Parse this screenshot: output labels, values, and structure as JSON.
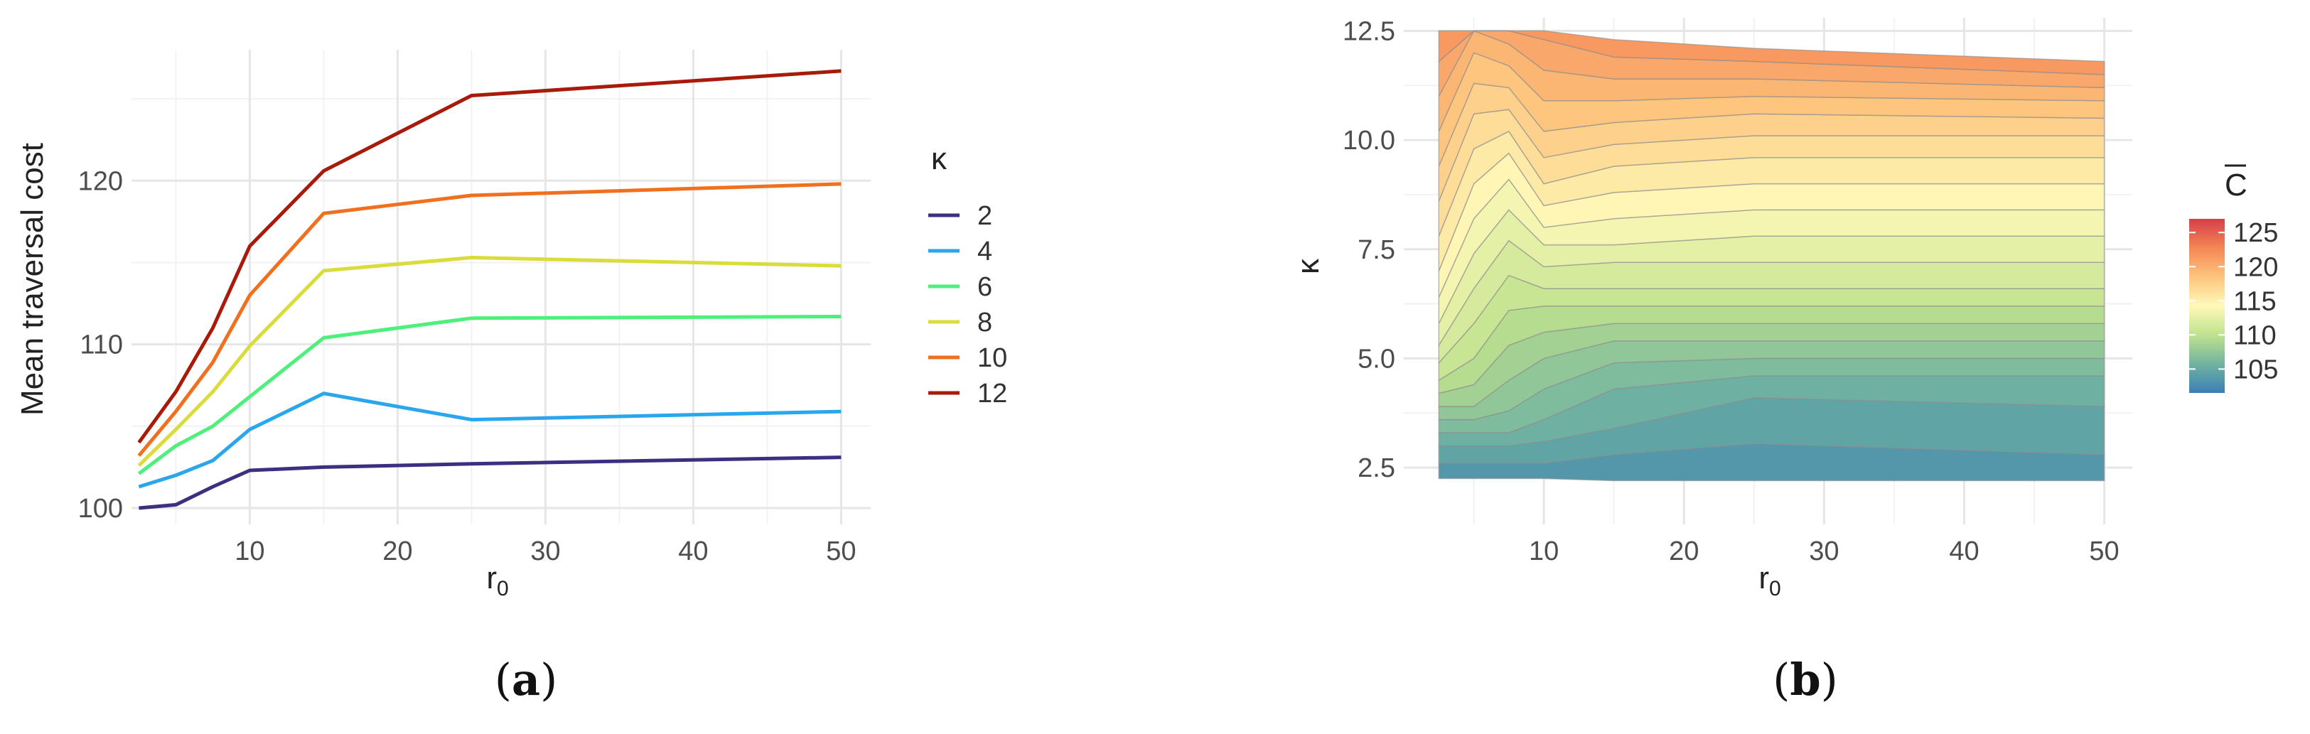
{
  "chart_data": [
    {
      "type": "line",
      "panel_label": {
        "open": "(",
        "letter": "a",
        "close": ")"
      },
      "xlabel": "r",
      "xlabel_subscript": "0",
      "ylabel": "Mean traversal cost",
      "xlim": [
        2,
        52
      ],
      "ylim": [
        99,
        128
      ],
      "x_ticks": [
        10,
        20,
        30,
        40,
        50
      ],
      "y_ticks": [
        100,
        110,
        120
      ],
      "grid": true,
      "legend_title": "κ",
      "legend_position": "right",
      "x": [
        2.5,
        5,
        7.5,
        10,
        15,
        25,
        50
      ],
      "series": [
        {
          "name": "2",
          "color": "#3b2f80",
          "values": [
            100.0,
            100.2,
            101.3,
            102.3,
            102.5,
            102.7,
            103.1
          ]
        },
        {
          "name": "4",
          "color": "#2aa7ec",
          "values": [
            101.3,
            102.0,
            102.9,
            104.8,
            107.0,
            105.4,
            105.9
          ]
        },
        {
          "name": "6",
          "color": "#4df07a",
          "values": [
            102.1,
            103.8,
            105.0,
            106.8,
            110.4,
            111.6,
            111.7
          ]
        },
        {
          "name": "8",
          "color": "#d9dc3b",
          "values": [
            102.6,
            104.8,
            107.1,
            109.9,
            114.5,
            115.3,
            114.8
          ]
        },
        {
          "name": "10",
          "color": "#f07020",
          "values": [
            103.2,
            105.9,
            108.9,
            113.0,
            118.0,
            119.1,
            119.8
          ]
        },
        {
          "name": "12",
          "color": "#a81a0a",
          "values": [
            104.0,
            107.1,
            111.0,
            116.0,
            120.6,
            125.2,
            126.7
          ]
        }
      ]
    },
    {
      "type": "heatmap",
      "panel_label": {
        "open": "(",
        "letter": "b",
        "close": ")"
      },
      "xlabel": "r",
      "xlabel_subscript": "0",
      "ylabel": "κ",
      "xlim": [
        0,
        52
      ],
      "ylim": [
        1.2,
        12.8
      ],
      "x_ticks": [
        10,
        20,
        30,
        40,
        50
      ],
      "y_ticks": [
        2.5,
        5.0,
        7.5,
        10.0,
        12.5
      ],
      "grid": true,
      "legend_title": "C",
      "legend_title_overline": true,
      "legend_position": "right",
      "colorbar_ticks": [
        105,
        110,
        115,
        120,
        125
      ],
      "colorbar_range": [
        101.5,
        127
      ],
      "colors": [
        "#3b7fb5",
        "#71b3a0",
        "#bfe28e",
        "#fff9b8",
        "#fdc57e",
        "#f48654",
        "#d73e4a"
      ],
      "contour_levels": [
        {
          "value": 103,
          "kappa": [
            2.25,
            2.25,
            2.25,
            2.25,
            2.2,
            2.2,
            2.2
          ]
        },
        {
          "value": 104,
          "kappa": [
            2.6,
            2.6,
            2.6,
            2.6,
            2.8,
            3.05,
            2.8
          ]
        },
        {
          "value": 105,
          "kappa": [
            3.0,
            3.0,
            3.0,
            3.1,
            3.4,
            4.1,
            3.9
          ]
        },
        {
          "value": 106,
          "kappa": [
            3.3,
            3.3,
            3.3,
            3.6,
            4.3,
            4.6,
            4.6
          ]
        },
        {
          "value": 107,
          "kappa": [
            3.6,
            3.6,
            3.8,
            4.3,
            4.9,
            5.0,
            5.0
          ]
        },
        {
          "value": 108,
          "kappa": [
            3.9,
            3.9,
            4.5,
            5.0,
            5.4,
            5.4,
            5.4
          ]
        },
        {
          "value": 109,
          "kappa": [
            4.2,
            4.4,
            5.3,
            5.6,
            5.8,
            5.8,
            5.8
          ]
        },
        {
          "value": 110,
          "kappa": [
            4.5,
            5.0,
            6.1,
            6.2,
            6.2,
            6.2,
            6.2
          ]
        },
        {
          "value": 111,
          "kappa": [
            4.9,
            5.8,
            6.9,
            6.6,
            6.6,
            6.6,
            6.6
          ]
        },
        {
          "value": 112,
          "kappa": [
            5.3,
            6.6,
            7.7,
            7.1,
            7.2,
            7.2,
            7.2
          ]
        },
        {
          "value": 113,
          "kappa": [
            5.8,
            7.4,
            8.4,
            7.6,
            7.6,
            7.8,
            7.8
          ]
        },
        {
          "value": 114,
          "kappa": [
            6.4,
            8.2,
            9.1,
            8.0,
            8.2,
            8.4,
            8.4
          ]
        },
        {
          "value": 115,
          "kappa": [
            7.0,
            9.0,
            9.7,
            8.5,
            8.8,
            9.0,
            9.0
          ]
        },
        {
          "value": 116,
          "kappa": [
            7.8,
            9.8,
            10.2,
            9.0,
            9.4,
            9.6,
            9.6
          ]
        },
        {
          "value": 117,
          "kappa": [
            8.6,
            10.6,
            10.7,
            9.6,
            9.9,
            10.1,
            10.1
          ]
        },
        {
          "value": 118,
          "kappa": [
            9.4,
            11.3,
            11.2,
            10.2,
            10.4,
            10.6,
            10.5
          ]
        },
        {
          "value": 119,
          "kappa": [
            10.2,
            12.0,
            11.7,
            10.9,
            10.9,
            11.0,
            10.9
          ]
        },
        {
          "value": 120,
          "kappa": [
            11.0,
            12.5,
            12.2,
            11.6,
            11.4,
            11.4,
            11.2
          ]
        },
        {
          "value": 121,
          "kappa": [
            11.8,
            12.5,
            12.5,
            12.3,
            11.9,
            11.8,
            11.5
          ]
        },
        {
          "value": 122,
          "kappa": [
            12.5,
            12.5,
            12.5,
            12.5,
            12.3,
            12.1,
            11.8
          ]
        }
      ],
      "x": [
        2.5,
        5,
        7.5,
        10,
        15,
        25,
        50
      ]
    }
  ]
}
